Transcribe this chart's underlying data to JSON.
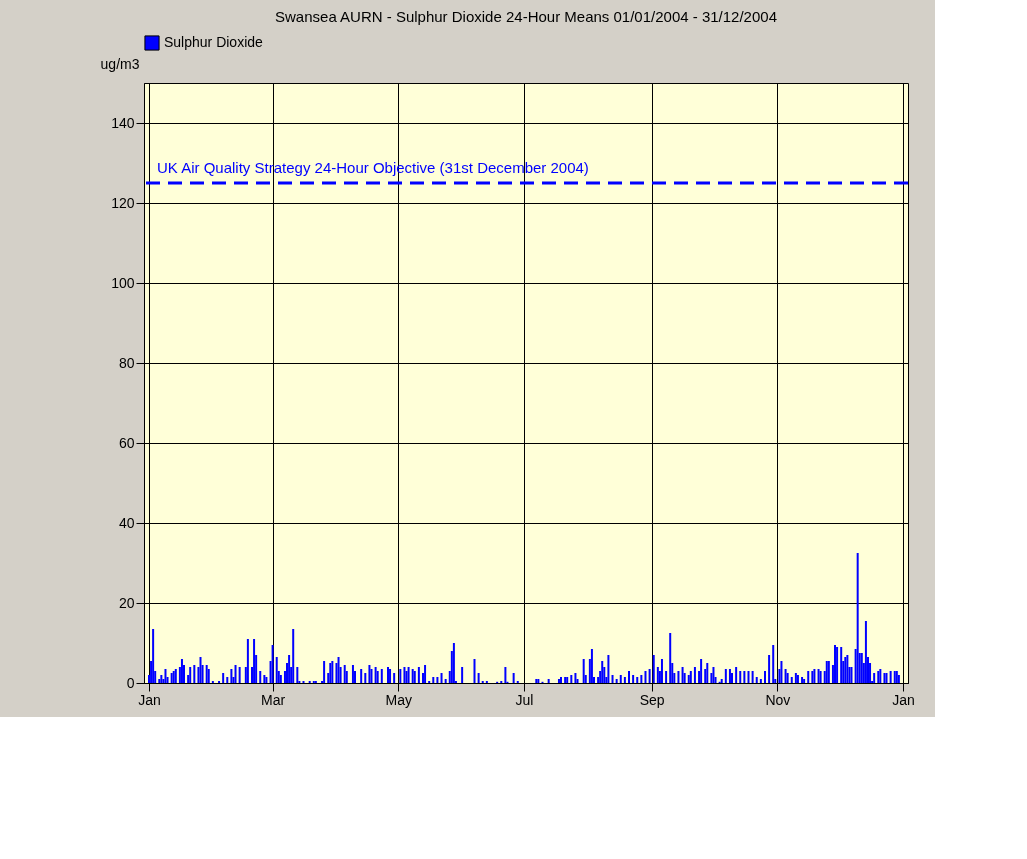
{
  "chart_data": {
    "type": "bar",
    "title": "Swansea AURN - Sulphur Dioxide 24-Hour Means    01/01/2004 - 31/12/2004",
    "ylabel": "ug/m3",
    "x": [
      "2004-01-01",
      "2004-01-02",
      "2004-01-03",
      "2004-01-04",
      "2004-01-06",
      "2004-01-07",
      "2004-01-08",
      "2004-01-09",
      "2004-01-10",
      "2004-01-12",
      "2004-01-13",
      "2004-01-14",
      "2004-01-16",
      "2004-01-17",
      "2004-01-18",
      "2004-01-20",
      "2004-01-21",
      "2004-01-23",
      "2004-01-25",
      "2004-01-26",
      "2004-01-27",
      "2004-01-29",
      "2004-01-30",
      "2004-02-01",
      "2004-02-04",
      "2004-02-06",
      "2004-02-08",
      "2004-02-10",
      "2004-02-11",
      "2004-02-12",
      "2004-02-14",
      "2004-02-17",
      "2004-02-18",
      "2004-02-20",
      "2004-02-21",
      "2004-02-22",
      "2004-02-24",
      "2004-02-26",
      "2004-02-27",
      "2004-02-29",
      "2004-03-01",
      "2004-03-03",
      "2004-03-04",
      "2004-03-05",
      "2004-03-07",
      "2004-03-08",
      "2004-03-09",
      "2004-03-10",
      "2004-03-11",
      "2004-03-13",
      "2004-03-14",
      "2004-03-16",
      "2004-03-19",
      "2004-03-21",
      "2004-03-22",
      "2004-03-25",
      "2004-03-26",
      "2004-03-28",
      "2004-03-29",
      "2004-03-30",
      "2004-04-01",
      "2004-04-02",
      "2004-04-03",
      "2004-04-05",
      "2004-04-06",
      "2004-04-09",
      "2004-04-10",
      "2004-04-13",
      "2004-04-15",
      "2004-04-17",
      "2004-04-18",
      "2004-04-20",
      "2004-04-21",
      "2004-04-23",
      "2004-04-26",
      "2004-04-27",
      "2004-04-29",
      "2004-05-02",
      "2004-05-04",
      "2004-05-05",
      "2004-05-06",
      "2004-05-08",
      "2004-05-09",
      "2004-05-11",
      "2004-05-13",
      "2004-05-14",
      "2004-05-16",
      "2004-05-18",
      "2004-05-20",
      "2004-05-22",
      "2004-05-24",
      "2004-05-26",
      "2004-05-27",
      "2004-05-28",
      "2004-05-29",
      "2004-06-01",
      "2004-06-07",
      "2004-06-09",
      "2004-06-11",
      "2004-06-13",
      "2004-06-18",
      "2004-06-20",
      "2004-06-22",
      "2004-06-23",
      "2004-06-26",
      "2004-06-28",
      "2004-07-07",
      "2004-07-08",
      "2004-07-10",
      "2004-07-13",
      "2004-07-18",
      "2004-07-19",
      "2004-07-21",
      "2004-07-22",
      "2004-07-24",
      "2004-07-26",
      "2004-07-27",
      "2004-07-30",
      "2004-07-31",
      "2004-08-02",
      "2004-08-03",
      "2004-08-04",
      "2004-08-06",
      "2004-08-07",
      "2004-08-08",
      "2004-08-09",
      "2004-08-10",
      "2004-08-11",
      "2004-08-13",
      "2004-08-15",
      "2004-08-17",
      "2004-08-19",
      "2004-08-21",
      "2004-08-23",
      "2004-08-25",
      "2004-08-27",
      "2004-08-29",
      "2004-08-31",
      "2004-09-02",
      "2004-09-04",
      "2004-09-05",
      "2004-09-06",
      "2004-09-08",
      "2004-09-10",
      "2004-09-11",
      "2004-09-12",
      "2004-09-14",
      "2004-09-16",
      "2004-09-17",
      "2004-09-19",
      "2004-09-20",
      "2004-09-22",
      "2004-09-24",
      "2004-09-25",
      "2004-09-27",
      "2004-09-28",
      "2004-09-30",
      "2004-10-01",
      "2004-10-02",
      "2004-10-04",
      "2004-10-05",
      "2004-10-07",
      "2004-10-09",
      "2004-10-10",
      "2004-10-12",
      "2004-10-14",
      "2004-10-16",
      "2004-10-18",
      "2004-10-20",
      "2004-10-22",
      "2004-10-24",
      "2004-10-26",
      "2004-10-28",
      "2004-10-30",
      "2004-10-31",
      "2004-11-02",
      "2004-11-03",
      "2004-11-05",
      "2004-11-06",
      "2004-11-08",
      "2004-11-10",
      "2004-11-11",
      "2004-11-13",
      "2004-11-14",
      "2004-11-16",
      "2004-11-18",
      "2004-11-19",
      "2004-11-21",
      "2004-11-22",
      "2004-11-24",
      "2004-11-25",
      "2004-11-26",
      "2004-11-28",
      "2004-11-29",
      "2004-11-30",
      "2004-12-02",
      "2004-12-03",
      "2004-12-04",
      "2004-12-05",
      "2004-12-06",
      "2004-12-07",
      "2004-12-09",
      "2004-12-10",
      "2004-12-11",
      "2004-12-12",
      "2004-12-13",
      "2004-12-14",
      "2004-12-15",
      "2004-12-16",
      "2004-12-17",
      "2004-12-18",
      "2004-12-20",
      "2004-12-21",
      "2004-12-23",
      "2004-12-24",
      "2004-12-26",
      "2004-12-28",
      "2004-12-29",
      "2004-12-30"
    ],
    "series": [
      {
        "name": "Sulphur Dioxide",
        "color": "#0000ff",
        "values": [
          2,
          5.5,
          13.5,
          3,
          1,
          2,
          1,
          3.5,
          1.5,
          2.5,
          3,
          3.5,
          4,
          6,
          4.5,
          2,
          4,
          4.5,
          4,
          6.5,
          4.5,
          4.5,
          3.5,
          0.5,
          0.5,
          2.5,
          1.5,
          3.5,
          1.5,
          4.5,
          4,
          4,
          11,
          4,
          11,
          7,
          3,
          2,
          1.5,
          5.5,
          9.5,
          6.5,
          3,
          2,
          3,
          5,
          7,
          4,
          13.5,
          4,
          0.5,
          0.5,
          0.5,
          0.5,
          0.5,
          0.5,
          5.5,
          2.5,
          5,
          5.5,
          5,
          6.5,
          4,
          4.5,
          3,
          4.5,
          3,
          3.5,
          2.5,
          4.5,
          3.5,
          4,
          3,
          3.5,
          4,
          3.5,
          2.5,
          3.5,
          4,
          3,
          4,
          3.5,
          3,
          4,
          2.5,
          4.5,
          0.5,
          1.5,
          1.5,
          2.5,
          1,
          3,
          8,
          10,
          0.5,
          4,
          6,
          2.5,
          0.5,
          0.5,
          0.3,
          0.5,
          4,
          0.3,
          2.5,
          0.5,
          1,
          1,
          0.3,
          1,
          1,
          1.5,
          1.5,
          1.5,
          2,
          2.5,
          1,
          6,
          2,
          6,
          8.5,
          1.5,
          1.5,
          3,
          5.5,
          4,
          1.5,
          7,
          2,
          1,
          2,
          1.5,
          3,
          2,
          1.5,
          2,
          3,
          3.5,
          7,
          4,
          3,
          6,
          3,
          12.5,
          5,
          2.5,
          3,
          4,
          2.5,
          2,
          3,
          4,
          3,
          6,
          3.5,
          5,
          2.5,
          4,
          1.5,
          0.3,
          1,
          3.5,
          3.5,
          2.5,
          4,
          3,
          3,
          3,
          3,
          1.5,
          1,
          3,
          7,
          9.5,
          1,
          3.5,
          5.5,
          3.5,
          2.5,
          1.5,
          2.5,
          2,
          1.5,
          1,
          3,
          3,
          3.5,
          3.5,
          3,
          3,
          5.5,
          5.5,
          4.5,
          9.5,
          9,
          9,
          5.5,
          6.5,
          7,
          4,
          4,
          8.5,
          32.5,
          7.5,
          7.5,
          5,
          15.5,
          6.5,
          5,
          0.5,
          2.5,
          3,
          3.5,
          2.5,
          2.5,
          3,
          3,
          3,
          2
        ]
      }
    ],
    "xlim": [
      "2004-01-01",
      "2005-01-01"
    ],
    "xticks": [
      {
        "value": "2004-01-01",
        "label": "Jan"
      },
      {
        "value": "2004-03-01",
        "label": "Mar"
      },
      {
        "value": "2004-05-01",
        "label": "May"
      },
      {
        "value": "2004-07-01",
        "label": "Jul"
      },
      {
        "value": "2004-09-01",
        "label": "Sep"
      },
      {
        "value": "2004-11-01",
        "label": "Nov"
      },
      {
        "value": "2005-01-01",
        "label": "Jan"
      }
    ],
    "ylim": [
      0,
      150
    ],
    "yticks": [
      0,
      20,
      40,
      60,
      80,
      100,
      120,
      140
    ],
    "grid": true,
    "legend": "top left",
    "ref_lines": [
      {
        "axis": "y",
        "value": 125,
        "label": "UK Air Quality Strategy 24-Hour Objective (31st December 2004)",
        "color": "#0000ff",
        "line_style": "dashed"
      }
    ]
  }
}
